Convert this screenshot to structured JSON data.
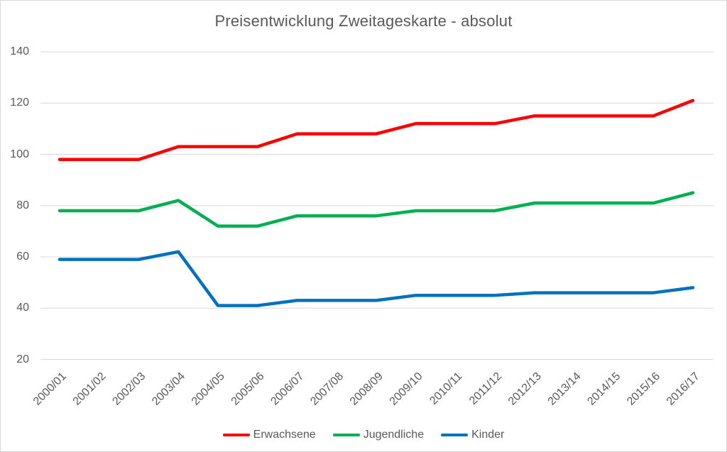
{
  "colors": {
    "erwachsene": "#FF0000",
    "jugendliche": "#00B050",
    "kinder": "#0070C0",
    "grid": "#D9D9D9",
    "text": "#595959"
  },
  "chart_data": {
    "type": "line",
    "title": "Preisentwicklung Zweitageskarte - absolut",
    "categories": [
      "2000/01",
      "2001/02",
      "2002/03",
      "2003/04",
      "2004/05",
      "2005/06",
      "2006/07",
      "2007/08",
      "2008/09",
      "2009/10",
      "2010/11",
      "2011/12",
      "2012/13",
      "2013/14",
      "2014/15",
      "2015/16",
      "2016/17"
    ],
    "series": [
      {
        "name": "Erwachsene",
        "color": "#FF0000",
        "values": [
          98,
          98,
          98,
          103,
          103,
          103,
          108,
          108,
          108,
          112,
          112,
          112,
          115,
          115,
          115,
          115,
          121
        ]
      },
      {
        "name": "Jugendliche",
        "color": "#00B050",
        "values": [
          78,
          78,
          78,
          82,
          72,
          72,
          76,
          76,
          76,
          78,
          78,
          78,
          81,
          81,
          81,
          81,
          85
        ]
      },
      {
        "name": "Kinder",
        "color": "#0070C0",
        "values": [
          59,
          59,
          59,
          62,
          41,
          41,
          43,
          43,
          43,
          45,
          45,
          45,
          46,
          46,
          46,
          46,
          48
        ]
      }
    ],
    "y_ticks": [
      20,
      40,
      60,
      80,
      100,
      120,
      140
    ],
    "ylim": [
      20,
      140
    ],
    "xlabel": "",
    "ylabel": "",
    "grid": true,
    "legend_position": "bottom"
  }
}
